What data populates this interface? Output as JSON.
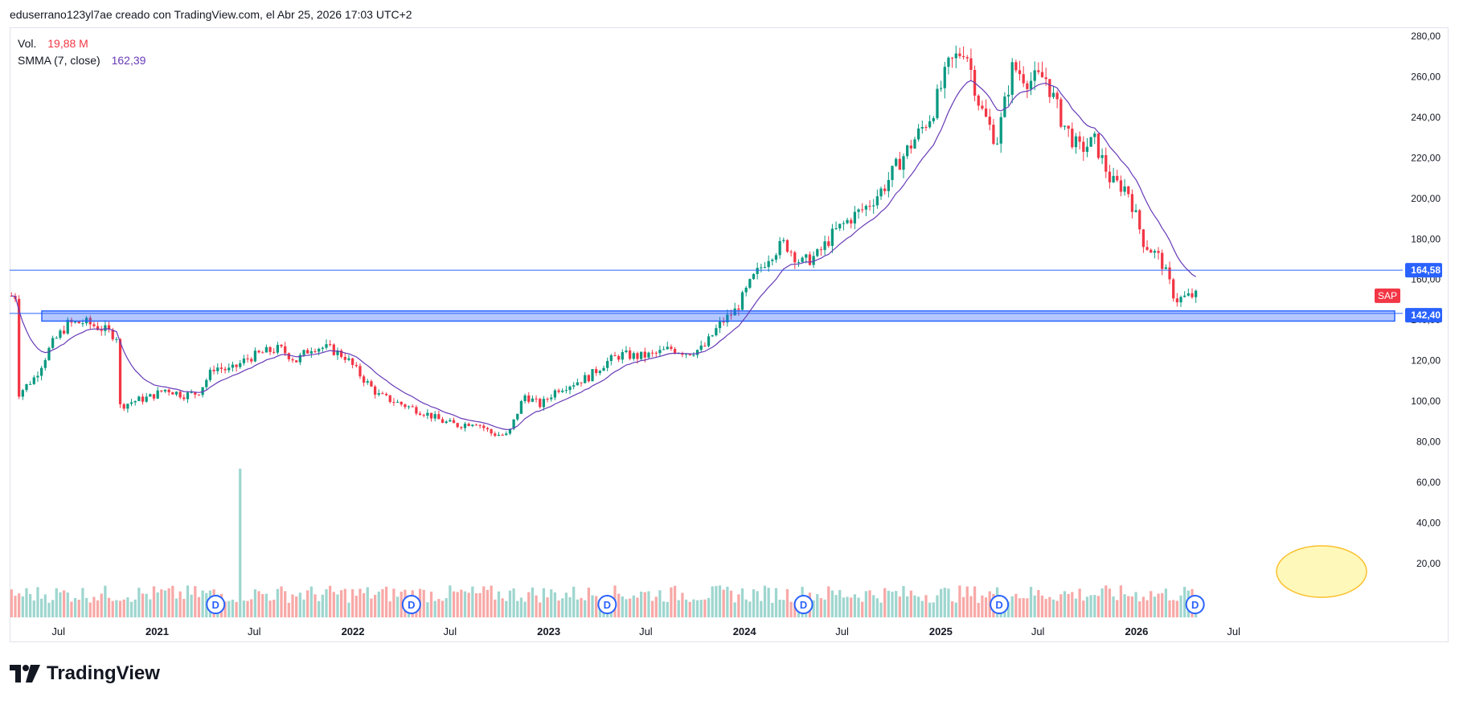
{
  "header": {
    "text": "eduserrano123yl7ae creado con TradingView.com, el Abr 25, 2026 17:03 UTC+2"
  },
  "legend": {
    "vol_label": "Vol.",
    "vol_value": "19,88 M",
    "smma_label": "SMMA (7, close)",
    "smma_value": "162,39"
  },
  "price_axis": {
    "labels": [
      "280,00",
      "260,00",
      "240,00",
      "220,00",
      "200,00",
      "180,00",
      "160,00",
      "140,00",
      "120,00",
      "100,00",
      "80,00",
      "60,00",
      "40,00",
      "20,00"
    ],
    "tag_upper": "164,58",
    "tag_lower": "142,40",
    "symbol_tag": "SAP"
  },
  "time_axis": {
    "labels": [
      "Jul",
      "2021",
      "Jul",
      "2022",
      "Jul",
      "2023",
      "Jul",
      "2024",
      "Jul",
      "2025",
      "Jul",
      "2026",
      "Jul"
    ],
    "bold": [
      false,
      true,
      false,
      true,
      false,
      true,
      false,
      true,
      false,
      true,
      false,
      true,
      false
    ]
  },
  "dividend_marker": "D",
  "colors": {
    "up": "#089981",
    "down": "#f23645",
    "smma": "#673ab7",
    "line": "#2962ff",
    "zone": "#2962ff",
    "highlight": "#ffeb3b"
  },
  "footer": {
    "brand_name": "TradingView"
  },
  "chart_data": {
    "type": "candlestick",
    "symbol": "SAP",
    "timeframe": "weekly",
    "x_range": [
      "2020-04",
      "2026-04"
    ],
    "y_range": [
      60,
      280
    ],
    "horizontal_lines": [
      164.58
    ],
    "support_zone": [
      139.5,
      144.5
    ],
    "smma_period": 7,
    "last_smma": 162.39,
    "price_path": [
      {
        "date": "2020-04",
        "close": 104
      },
      {
        "date": "2020-05",
        "close": 112
      },
      {
        "date": "2020-06",
        "close": 128
      },
      {
        "date": "2020-07",
        "close": 138
      },
      {
        "date": "2020-08",
        "close": 139
      },
      {
        "date": "2020-09",
        "close": 136
      },
      {
        "date": "2020-10",
        "close": 132
      },
      {
        "date": "2020-10",
        "close": 97
      },
      {
        "date": "2020-11",
        "close": 100
      },
      {
        "date": "2020-12",
        "close": 102
      },
      {
        "date": "2021-01",
        "close": 106
      },
      {
        "date": "2021-02",
        "close": 103
      },
      {
        "date": "2021-03",
        "close": 104
      },
      {
        "date": "2021-04",
        "close": 117
      },
      {
        "date": "2021-05",
        "close": 115
      },
      {
        "date": "2021-06",
        "close": 121
      },
      {
        "date": "2021-07",
        "close": 124
      },
      {
        "date": "2021-08",
        "close": 126
      },
      {
        "date": "2021-09",
        "close": 120
      },
      {
        "date": "2021-10",
        "close": 127
      },
      {
        "date": "2021-11",
        "close": 126
      },
      {
        "date": "2021-12",
        "close": 122
      },
      {
        "date": "2022-01",
        "close": 112
      },
      {
        "date": "2022-02",
        "close": 103
      },
      {
        "date": "2022-03",
        "close": 100
      },
      {
        "date": "2022-04",
        "close": 97
      },
      {
        "date": "2022-05",
        "close": 94
      },
      {
        "date": "2022-06",
        "close": 90
      },
      {
        "date": "2022-07",
        "close": 88
      },
      {
        "date": "2022-08",
        "close": 90
      },
      {
        "date": "2022-09",
        "close": 84
      },
      {
        "date": "2022-10",
        "close": 83
      },
      {
        "date": "2022-11",
        "close": 103
      },
      {
        "date": "2022-12",
        "close": 98
      },
      {
        "date": "2023-01",
        "close": 106
      },
      {
        "date": "2023-02",
        "close": 109
      },
      {
        "date": "2023-03",
        "close": 112
      },
      {
        "date": "2023-04",
        "close": 119
      },
      {
        "date": "2023-05",
        "close": 123
      },
      {
        "date": "2023-06",
        "close": 122
      },
      {
        "date": "2023-07",
        "close": 123
      },
      {
        "date": "2023-08",
        "close": 126
      },
      {
        "date": "2023-09",
        "close": 124
      },
      {
        "date": "2023-10",
        "close": 126
      },
      {
        "date": "2023-11",
        "close": 138
      },
      {
        "date": "2023-12",
        "close": 145
      },
      {
        "date": "2024-01",
        "close": 160
      },
      {
        "date": "2024-02",
        "close": 172
      },
      {
        "date": "2024-03",
        "close": 178
      },
      {
        "date": "2024-04",
        "close": 168
      },
      {
        "date": "2024-05",
        "close": 172
      },
      {
        "date": "2024-06",
        "close": 183
      },
      {
        "date": "2024-07",
        "close": 190
      },
      {
        "date": "2024-08",
        "close": 196
      },
      {
        "date": "2024-09",
        "close": 205
      },
      {
        "date": "2024-10",
        "close": 218
      },
      {
        "date": "2024-11",
        "close": 230
      },
      {
        "date": "2024-12",
        "close": 242
      },
      {
        "date": "2025-01",
        "close": 265
      },
      {
        "date": "2025-02",
        "close": 275
      },
      {
        "date": "2025-03",
        "close": 245
      },
      {
        "date": "2025-04",
        "close": 228
      },
      {
        "date": "2025-05",
        "close": 265
      },
      {
        "date": "2025-06",
        "close": 258
      },
      {
        "date": "2025-07",
        "close": 260
      },
      {
        "date": "2025-08",
        "close": 238
      },
      {
        "date": "2025-09",
        "close": 224
      },
      {
        "date": "2025-10",
        "close": 228
      },
      {
        "date": "2025-11",
        "close": 208
      },
      {
        "date": "2025-12",
        "close": 205
      },
      {
        "date": "2026-01",
        "close": 178
      },
      {
        "date": "2026-02",
        "close": 170
      },
      {
        "date": "2026-03",
        "close": 150
      },
      {
        "date": "2026-04",
        "close": 152
      }
    ]
  }
}
